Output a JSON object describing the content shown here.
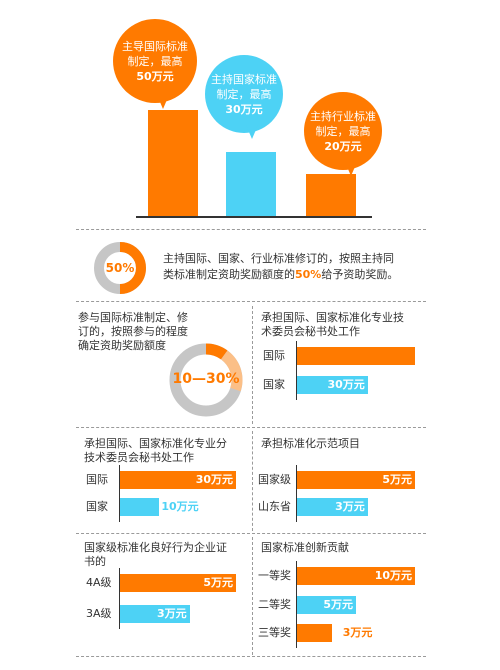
{
  "colors": {
    "orange": "#ff7a00",
    "cyan": "#4dd2f5",
    "light_orange": "#fbbf87",
    "gray": "#c6c6c6",
    "dark": "#333333"
  },
  "chart_data": [
    {
      "type": "bar",
      "categories": [
        "主导国际标准制定",
        "主持国家标准制定",
        "主持行业标准制定"
      ],
      "values": [
        50,
        30,
        20
      ],
      "bubbles": [
        {
          "line1": "主导国际标准",
          "line2": "制定，最高",
          "amount": "50万元"
        },
        {
          "line1": "主持国家标准",
          "line2": "制定，最高",
          "amount": "30万元"
        },
        {
          "line1": "主持行业标准",
          "line2": "制定，最高",
          "amount": "20万元"
        }
      ]
    },
    {
      "type": "pie",
      "label": "50%",
      "values": [
        50,
        50
      ],
      "description_line1": "主持国际、国家、行业标准修订的，按照主持同",
      "description_line2_pre": "类标准制定资助奖励额度的",
      "description_line2_hl": "50%",
      "description_line2_post": "给予资助奖励。"
    },
    {
      "type": "pie",
      "label": "10—30%",
      "values": [
        10,
        20,
        70
      ],
      "title_lines": [
        "参与国际标准制定、修",
        "订的，按照参与的程度",
        "确定资助奖励额度"
      ]
    },
    {
      "type": "bar",
      "orientation": "horizontal",
      "title_lines": [
        "承担国际、国家标准化专业技",
        "术委员会秘书处工作"
      ],
      "categories": [
        "国际",
        "国家"
      ],
      "values": [
        50,
        30
      ],
      "value_labels": [
        "",
        "30万元"
      ]
    },
    {
      "type": "bar",
      "orientation": "horizontal",
      "title_lines": [
        "承担国际、国家标准化专业分",
        "技术委员会秘书处工作"
      ],
      "categories": [
        "国际",
        "国家"
      ],
      "values": [
        30,
        10
      ],
      "value_labels": [
        "30万元",
        "10万元"
      ]
    },
    {
      "type": "bar",
      "orientation": "horizontal",
      "title_lines": [
        "承担标准化示范项目"
      ],
      "categories": [
        "国家级",
        "山东省"
      ],
      "values": [
        5,
        3
      ],
      "value_labels": [
        "5万元",
        "3万元"
      ]
    },
    {
      "type": "bar",
      "orientation": "horizontal",
      "title_lines": [
        "国家级标准化良好行为企业证",
        "书的"
      ],
      "categories": [
        "4A级",
        "3A级"
      ],
      "values": [
        5,
        3
      ],
      "value_labels": [
        "5万元",
        "3万元"
      ]
    },
    {
      "type": "bar",
      "orientation": "horizontal",
      "title_lines": [
        "国家标准创新贡献"
      ],
      "categories": [
        "一等奖",
        "二等奖",
        "三等奖"
      ],
      "values": [
        10,
        5,
        3
      ],
      "value_labels": [
        "10万元",
        "5万元",
        "3万元"
      ]
    }
  ]
}
